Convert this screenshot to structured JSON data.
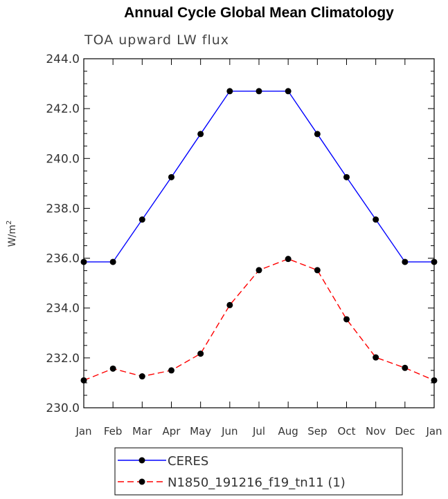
{
  "chart_data": {
    "type": "line",
    "title": "Annual Cycle Global Mean Climatology",
    "subtitle": "TOA upward LW flux",
    "ylabel": "W/m",
    "ylabel_sup": "2",
    "xlabel": "",
    "categories": [
      "Jan",
      "Feb",
      "Mar",
      "Apr",
      "May",
      "Jun",
      "Jul",
      "Aug",
      "Sep",
      "Oct",
      "Nov",
      "Dec",
      "Jan"
    ],
    "ylim": [
      230.0,
      244.0
    ],
    "yticks": [
      "230.0",
      "232.0",
      "234.0",
      "236.0",
      "238.0",
      "240.0",
      "242.0",
      "244.0"
    ],
    "grid": false,
    "legend_position": "bottom",
    "series": [
      {
        "name": "CERES",
        "color": "#0000ff",
        "dash": "solid",
        "marker": "circle",
        "values": [
          235.85,
          235.85,
          237.55,
          239.25,
          240.98,
          242.7,
          242.7,
          242.7,
          240.98,
          239.25,
          237.55,
          235.85,
          235.85
        ]
      },
      {
        "name": "N1850_191216_f19_tn11 (1)",
        "color": "#ff0000",
        "dash": "dashed",
        "marker": "circle",
        "values": [
          231.1,
          231.57,
          231.26,
          231.5,
          232.17,
          234.12,
          235.52,
          235.97,
          235.52,
          233.55,
          232.02,
          231.6,
          231.1
        ]
      }
    ]
  }
}
